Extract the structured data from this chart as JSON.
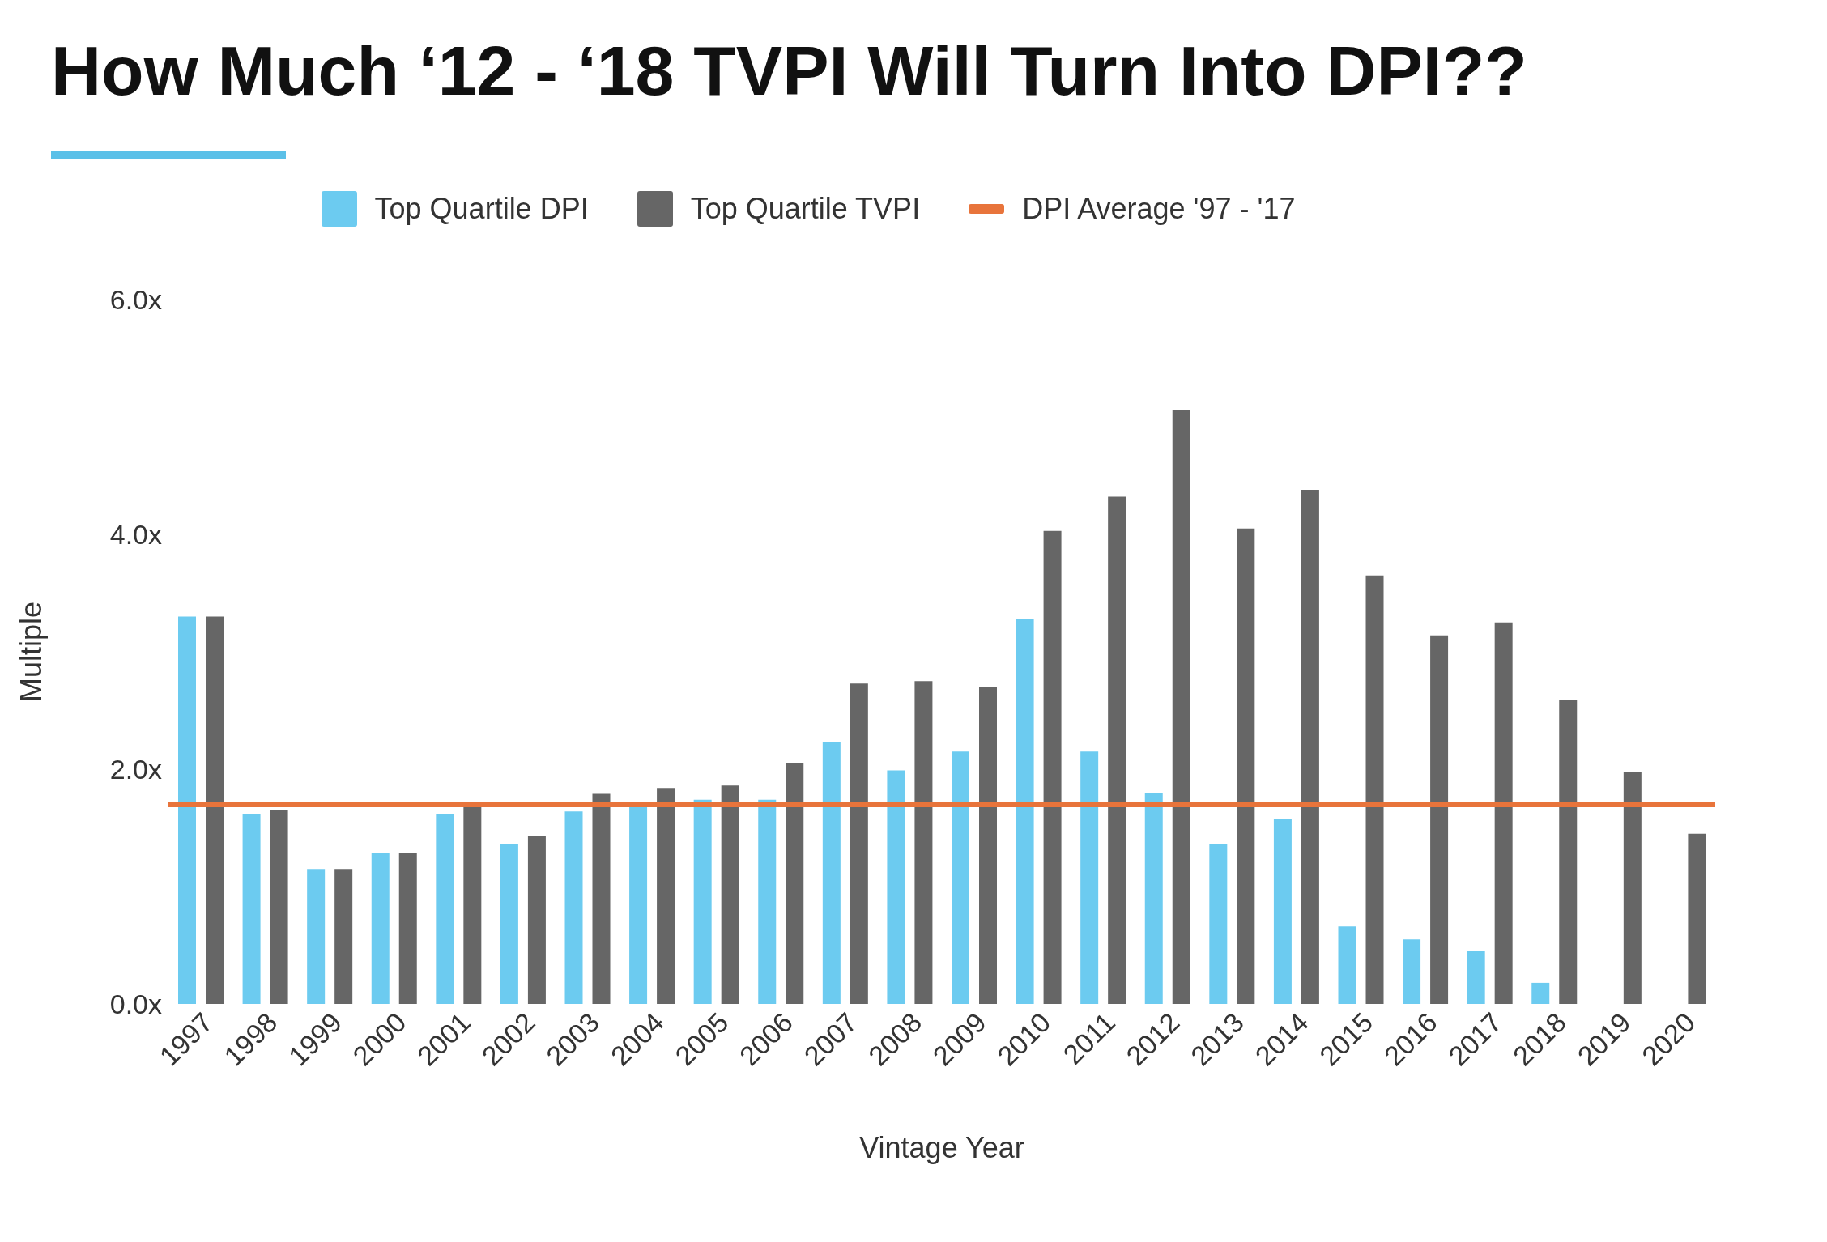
{
  "chart_data": {
    "type": "bar",
    "title": "How Much ‘12 - ‘18 TVPI Will Turn Into DPI??",
    "xlabel": "Vintage Year",
    "ylabel": "Multiple",
    "categories": [
      "1997",
      "1998",
      "1999",
      "2000",
      "2001",
      "2002",
      "2003",
      "2004",
      "2005",
      "2006",
      "2007",
      "2008",
      "2009",
      "2010",
      "2011",
      "2012",
      "2013",
      "2014",
      "2015",
      "2016",
      "2017",
      "2018",
      "2019",
      "2020"
    ],
    "series": [
      {
        "name": "Top Quartile DPI",
        "color": "#6ccbf0",
        "values": [
          3.3,
          1.62,
          1.15,
          1.29,
          1.62,
          1.36,
          1.64,
          1.68,
          1.74,
          1.74,
          2.23,
          1.99,
          2.15,
          3.28,
          2.15,
          1.8,
          1.36,
          1.58,
          0.66,
          0.55,
          0.45,
          0.18,
          null,
          null
        ]
      },
      {
        "name": "Top Quartile TVPI",
        "color": "#666666",
        "values": [
          3.3,
          1.65,
          1.15,
          1.29,
          1.68,
          1.43,
          1.79,
          1.84,
          1.86,
          2.05,
          2.73,
          2.75,
          2.7,
          4.03,
          4.32,
          5.06,
          4.05,
          4.38,
          3.65,
          3.14,
          3.25,
          2.59,
          1.98,
          1.45
        ]
      }
    ],
    "ref_lines": [
      {
        "axis": "y",
        "value": 1.7,
        "label": "DPI Average '97 - '17",
        "color": "#e8743b"
      }
    ],
    "ylim": [
      0,
      6
    ],
    "yticks": [
      {
        "value": 0,
        "label": "0.0x"
      },
      {
        "value": 2,
        "label": "2.0x"
      },
      {
        "value": 4,
        "label": "4.0x"
      },
      {
        "value": 6,
        "label": "6.0x"
      }
    ],
    "grid": false,
    "legend": "top"
  }
}
